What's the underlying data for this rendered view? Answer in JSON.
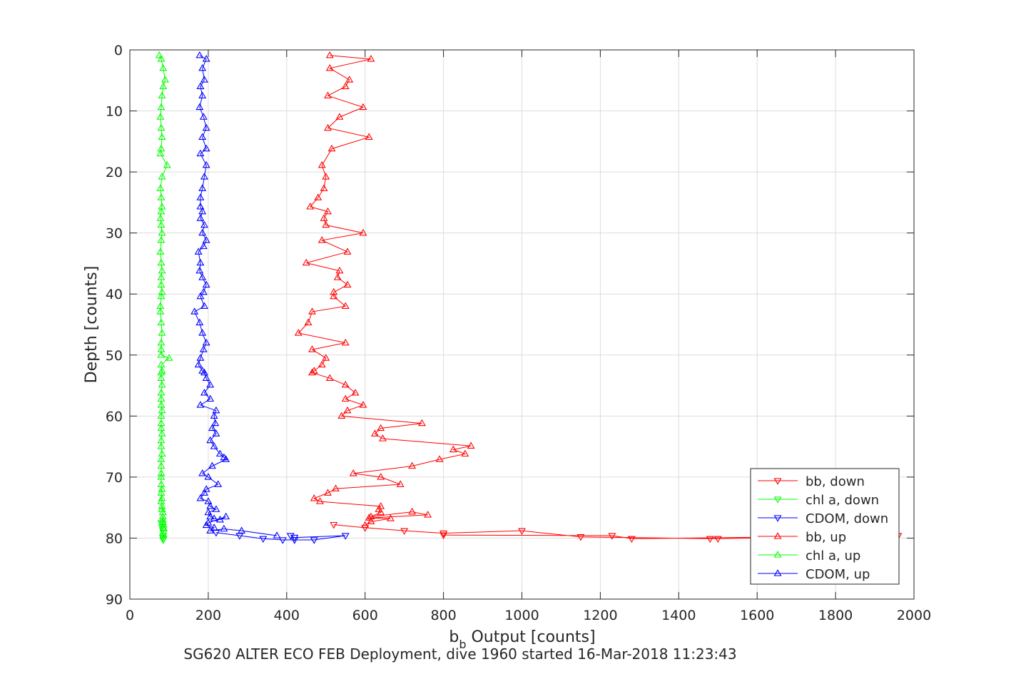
{
  "chart_data": {
    "type": "line",
    "xlabel": "b",
    "xlabel_sub": "b",
    "xlabel_rest": " Output [counts]",
    "ylabel": "Depth [counts]",
    "caption": "SG620 ALTER ECO FEB Deployment, dive 1960 started 16-Mar-2018 11:23:43",
    "xlim": [
      0,
      2000
    ],
    "ylim": [
      0,
      90
    ],
    "y_reversed": true,
    "grid": true,
    "legend_position": "bottom-right",
    "xticks": [
      "0",
      "200",
      "400",
      "600",
      "800",
      "1000",
      "1200",
      "1400",
      "1600",
      "1800",
      "2000"
    ],
    "yticks": [
      "0",
      "10",
      "20",
      "30",
      "40",
      "50",
      "60",
      "70",
      "80",
      "90"
    ],
    "series": [
      {
        "name": "bb, down",
        "color": "#ff0000",
        "marker": "triangle-down",
        "x": [
          520,
          600,
          700,
          800,
          1000,
          1150,
          1480,
          1500,
          1960,
          1280,
          1230,
          800
        ],
        "y": [
          77.8,
          78.3,
          78.8,
          79.2,
          78.8,
          79.8,
          80.1,
          80.1,
          79.6,
          80.1,
          79.6,
          79.5
        ]
      },
      {
        "name": "chl a, down",
        "color": "#00ff00",
        "marker": "triangle-down",
        "x": [
          80,
          82,
          84,
          86,
          85,
          84,
          86,
          85
        ],
        "y": [
          77.5,
          78.2,
          78.7,
          79.2,
          79.6,
          79.9,
          80.1,
          80.3
        ]
      },
      {
        "name": "CDOM, down",
        "color": "#0000ff",
        "marker": "triangle-down",
        "x": [
          220,
          280,
          340,
          390,
          420,
          470,
          550,
          420,
          410
        ],
        "y": [
          79.1,
          79.6,
          80.1,
          80.3,
          80.3,
          80.3,
          79.6,
          79.9,
          79.6
        ]
      },
      {
        "name": "bb, up",
        "color": "#ff0000",
        "marker": "triangle-up",
        "x": [
          510,
          615,
          510,
          560,
          550,
          505,
          595,
          535,
          505,
          610,
          515,
          490,
          500,
          495,
          480,
          460,
          505,
          495,
          500,
          595,
          490,
          555,
          450,
          535,
          530,
          555,
          520,
          520,
          550,
          465,
          455,
          430,
          550,
          465,
          500,
          490,
          470,
          465,
          510,
          550,
          575,
          550,
          595,
          555,
          540,
          745,
          640,
          625,
          645,
          870,
          825,
          855,
          790,
          720,
          570,
          640,
          690,
          525,
          505,
          470,
          485,
          640,
          635,
          640,
          615,
          720,
          760,
          610,
          665,
          615,
          600
        ],
        "y": [
          0.9,
          1.5,
          3.0,
          4.9,
          6.0,
          7.5,
          9.4,
          11.0,
          12.8,
          14.3,
          16.2,
          18.9,
          20.8,
          22.7,
          24.2,
          25.7,
          26.5,
          27.6,
          28.7,
          30.0,
          31.2,
          33.1,
          34.9,
          36.2,
          37.3,
          38.5,
          39.7,
          40.4,
          42.0,
          42.9,
          44.7,
          46.4,
          48.0,
          49.1,
          50.5,
          51.6,
          52.6,
          52.9,
          53.8,
          54.9,
          56.2,
          57.2,
          58.2,
          59.1,
          60.0,
          61.2,
          62.0,
          62.9,
          63.7,
          64.9,
          65.5,
          66.2,
          67.1,
          68.2,
          69.4,
          70.0,
          71.2,
          71.9,
          72.6,
          73.5,
          74.0,
          74.8,
          75.3,
          75.8,
          76.5,
          75.7,
          76.2,
          76.7,
          76.8,
          77.3,
          77.9
        ]
      },
      {
        "name": "chl a, up",
        "color": "#00ff00",
        "marker": "triangle-up",
        "x": [
          75,
          80,
          85,
          90,
          85,
          82,
          80,
          78,
          80,
          82,
          80,
          78,
          95,
          82,
          78,
          80,
          82,
          80,
          78,
          80,
          82,
          80,
          78,
          80,
          82,
          80,
          80,
          82,
          80,
          78,
          78,
          80,
          82,
          80,
          80,
          80,
          100,
          80,
          82,
          80,
          80,
          82,
          80,
          80,
          80,
          82,
          80,
          80,
          80,
          82,
          80,
          80,
          82,
          80,
          80,
          80,
          80,
          80,
          82,
          80,
          82,
          80,
          82,
          82,
          84,
          84,
          84,
          84,
          86,
          86
        ],
        "y": [
          0.9,
          1.5,
          3.0,
          4.9,
          6.0,
          7.5,
          9.4,
          11.0,
          12.8,
          14.3,
          16.2,
          17.0,
          18.9,
          20.8,
          22.7,
          24.2,
          25.7,
          26.5,
          27.6,
          28.7,
          30.0,
          31.2,
          33.1,
          34.9,
          36.2,
          37.3,
          38.5,
          39.7,
          40.4,
          42.0,
          42.9,
          44.7,
          46.4,
          48.0,
          49.1,
          50.0,
          50.5,
          51.6,
          52.6,
          52.9,
          53.8,
          54.9,
          56.2,
          57.2,
          58.2,
          59.1,
          60.0,
          61.2,
          62.0,
          62.9,
          64.0,
          65.0,
          66.2,
          67.1,
          68.2,
          69.4,
          70.0,
          71.2,
          72.0,
          72.6,
          73.5,
          74.0,
          74.8,
          75.3,
          75.8,
          76.5,
          77.0,
          77.4,
          77.8,
          78.3
        ]
      },
      {
        "name": "CDOM, up",
        "color": "#0000ff",
        "marker": "triangle-up",
        "x": [
          178,
          195,
          185,
          190,
          180,
          185,
          178,
          188,
          195,
          185,
          195,
          180,
          195,
          190,
          185,
          180,
          180,
          185,
          180,
          190,
          185,
          195,
          188,
          175,
          180,
          178,
          185,
          195,
          188,
          180,
          190,
          165,
          178,
          185,
          195,
          188,
          180,
          175,
          185,
          190,
          195,
          205,
          190,
          205,
          180,
          220,
          215,
          218,
          210,
          220,
          205,
          215,
          230,
          240,
          245,
          210,
          185,
          200,
          225,
          195,
          190,
          180,
          200,
          205,
          220,
          200,
          205,
          215,
          230,
          245,
          200,
          195,
          215,
          205,
          240,
          285,
          375
        ],
        "y": [
          0.9,
          1.5,
          3.0,
          4.9,
          6.0,
          7.5,
          9.4,
          11.0,
          12.8,
          14.3,
          16.2,
          17.0,
          18.9,
          20.8,
          22.7,
          24.2,
          25.7,
          26.5,
          27.6,
          28.7,
          30.0,
          31.2,
          32.2,
          33.1,
          34.9,
          36.2,
          37.3,
          38.5,
          39.7,
          40.4,
          42.0,
          42.9,
          44.7,
          46.4,
          48.0,
          49.1,
          50.5,
          51.6,
          52.6,
          52.9,
          53.8,
          54.9,
          56.2,
          57.2,
          58.2,
          59.1,
          60.0,
          61.2,
          62.0,
          62.9,
          64.0,
          65.0,
          66.2,
          66.8,
          67.1,
          68.2,
          69.4,
          70.0,
          71.2,
          72.0,
          72.6,
          73.5,
          74.0,
          74.8,
          75.3,
          75.8,
          76.5,
          76.8,
          77.0,
          76.5,
          77.5,
          77.9,
          78.3,
          78.8,
          78.5,
          78.8,
          79.6
        ]
      }
    ]
  }
}
